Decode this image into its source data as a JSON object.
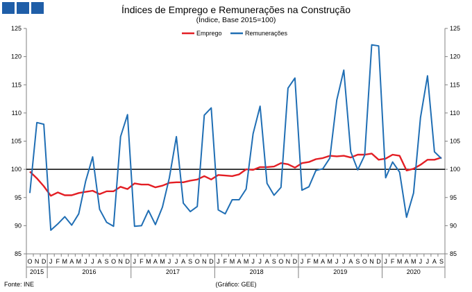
{
  "chart_data": {
    "type": "line",
    "title": "Índices de Emprego  e Remunerações na Construção",
    "subtitle": "(Índice, Base 2015=100)",
    "ylim": [
      85,
      125
    ],
    "yticks": [
      85,
      90,
      95,
      100,
      105,
      110,
      115,
      120,
      125
    ],
    "dual_y_axis": true,
    "grid": false,
    "legend_position": "top-center",
    "reference_line": 100,
    "month_labels": [
      "O",
      "N",
      "D",
      "J",
      "F",
      "M",
      "A",
      "M",
      "J",
      "J",
      "A",
      "S",
      "O",
      "N",
      "D",
      "J",
      "F",
      "M",
      "A",
      "M",
      "J",
      "J",
      "A",
      "S",
      "O",
      "N",
      "D",
      "J",
      "F",
      "M",
      "A",
      "M",
      "J",
      "J",
      "A",
      "S",
      "O",
      "N",
      "D",
      "J",
      "F",
      "M",
      "A",
      "M",
      "J",
      "J",
      "A",
      "S",
      "O",
      "N",
      "D",
      "J",
      "F",
      "M",
      "A",
      "M",
      "J",
      "J",
      "A",
      "S"
    ],
    "years": [
      {
        "label": "2015",
        "months": 3
      },
      {
        "label": "2016",
        "months": 12
      },
      {
        "label": "2017",
        "months": 12
      },
      {
        "label": "2018",
        "months": 12
      },
      {
        "label": "2019",
        "months": 12
      },
      {
        "label": "2020",
        "months": 9
      }
    ],
    "series": [
      {
        "name": "Emprego",
        "color": "#e31e24",
        "values": [
          99.6,
          98.4,
          97.0,
          95.3,
          95.9,
          95.4,
          95.4,
          95.8,
          96.0,
          96.2,
          95.6,
          96.1,
          96.1,
          96.9,
          96.5,
          97.5,
          97.3,
          97.3,
          96.8,
          97.1,
          97.6,
          97.7,
          97.7,
          98.0,
          98.2,
          98.8,
          98.2,
          99.0,
          98.9,
          98.8,
          99.1,
          100.0,
          99.9,
          100.4,
          100.4,
          100.5,
          101.1,
          100.9,
          100.3,
          101.1,
          101.3,
          101.8,
          102.0,
          102.4,
          102.3,
          102.4,
          102.1,
          102.6,
          102.6,
          102.8,
          101.7,
          101.9,
          102.6,
          102.4,
          99.8,
          100.1,
          100.8,
          101.7,
          101.7,
          102.1
        ]
      },
      {
        "name": "Remunerações",
        "color": "#1f6eb4",
        "values": [
          95.8,
          108.3,
          108.0,
          89.2,
          90.3,
          91.6,
          90.1,
          92.1,
          97.9,
          102.2,
          92.9,
          90.6,
          89.9,
          105.8,
          109.7,
          89.9,
          90.0,
          92.7,
          90.2,
          93.3,
          98.5,
          105.8,
          94.0,
          92.5,
          93.4,
          109.6,
          110.9,
          92.8,
          92.1,
          94.6,
          94.6,
          96.5,
          106.3,
          111.2,
          97.5,
          95.4,
          96.8,
          114.4,
          116.2,
          96.3,
          96.9,
          99.8,
          100.1,
          102.0,
          112.3,
          117.6,
          103.1,
          99.9,
          102.5,
          122.1,
          121.9,
          98.5,
          101.3,
          99.5,
          91.5,
          95.8,
          109.2,
          116.6,
          103.1,
          101.9
        ]
      }
    ]
  },
  "footer": {
    "source": "Fonte: INE",
    "credit": "(Gráfico: GEE)"
  }
}
